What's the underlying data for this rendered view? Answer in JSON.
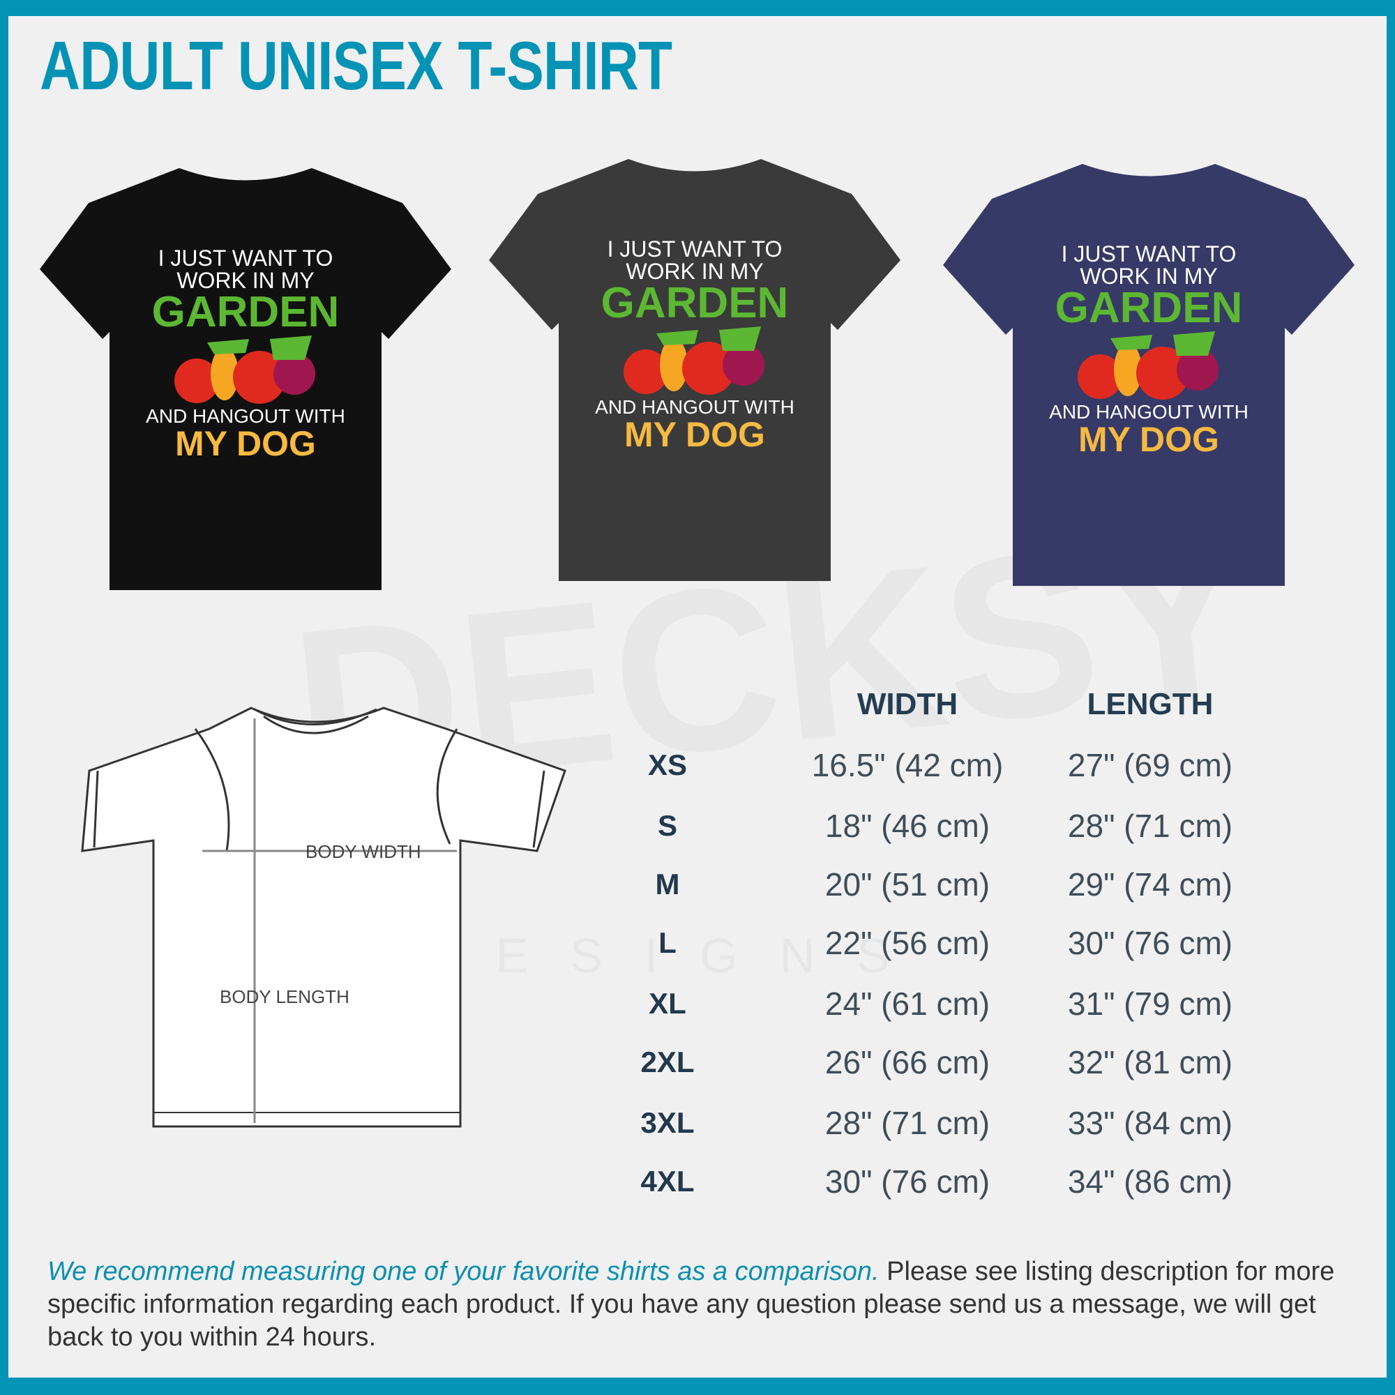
{
  "title": "ADULT UNISEX T-SHIRT",
  "watermark": {
    "brand": "DECKSY",
    "sub": "DESIGNS"
  },
  "colors": {
    "accent": "#0494b6",
    "background": "#f0f0f0"
  },
  "shirts": [
    {
      "color_name": "black",
      "color": "#111111"
    },
    {
      "color_name": "dark heather gray",
      "color": "#3a3a3a"
    },
    {
      "color_name": "heather navy",
      "color": "#373a66"
    }
  ],
  "shirt_print": {
    "line1": "I JUST WANT TO",
    "line2": "WORK IN MY",
    "line3": "GARDEN",
    "line4": "AND HANGOUT WITH",
    "line5": "MY DOG"
  },
  "diagram": {
    "width_label": "BODY WIDTH",
    "length_label": "BODY LENGTH"
  },
  "table": {
    "headers": {
      "width": "WIDTH",
      "length": "LENGTH"
    },
    "rows": [
      {
        "size": "XS",
        "width": "16.5\" (42 cm)",
        "length": "27\" (69 cm)"
      },
      {
        "size": "S",
        "width": "18\" (46 cm)",
        "length": "28\" (71 cm)"
      },
      {
        "size": "M",
        "width": "20\" (51 cm)",
        "length": "29\" (74 cm)"
      },
      {
        "size": "L",
        "width": "22\" (56 cm)",
        "length": "30\" (76 cm)"
      },
      {
        "size": "XL",
        "width": "24\" (61 cm)",
        "length": "31\" (79 cm)"
      },
      {
        "size": "2XL",
        "width": "26\" (66 cm)",
        "length": "32\" (81 cm)"
      },
      {
        "size": "3XL",
        "width": "28\" (71 cm)",
        "length": "33\" (84 cm)"
      },
      {
        "size": "4XL",
        "width": "30\" (76 cm)",
        "length": "34\" (86 cm)"
      }
    ]
  },
  "footer": {
    "highlight": "We recommend measuring one of your favorite shirts as a comparison.",
    "body": " Please see listing description for more specific information regarding each product. If you have any question please send us a message, we will get back to you within 24 hours."
  }
}
